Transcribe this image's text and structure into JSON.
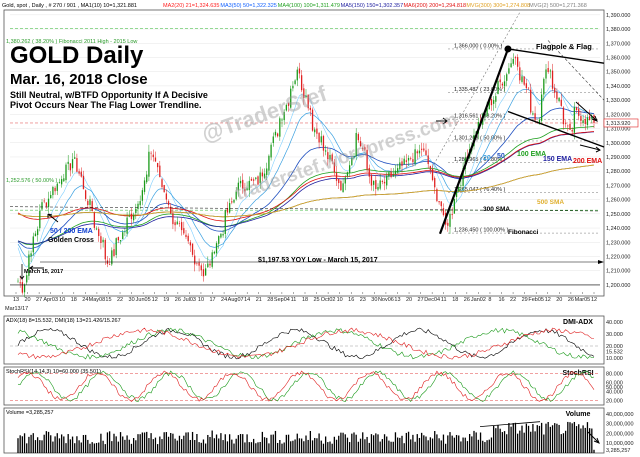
{
  "header": {
    "symbol_line": "Gold, spot , Daily , # 270 / 901 , MA1(10) 10=1,321.881",
    "ma_parts": [
      {
        "text": "MA2(20) 21=1,324.635",
        "color": "#ff2020"
      },
      {
        "text": "MA3(50) 50=1,322.325",
        "color": "#1060ff"
      },
      {
        "text": "MA4(100) 100=1,311.479",
        "color": "#20a020"
      },
      {
        "text": "MA5(150) 150=1,302.357",
        "color": "#2020a0"
      },
      {
        "text": "MA6(200) 200=1,294.818",
        "color": "#e01010"
      },
      {
        "text": "MVG(300) 300=1,274.808",
        "color": "#e0a020"
      },
      {
        "text": "MVG(2) 500=1,271.368",
        "color": "#808080"
      }
    ]
  },
  "title": {
    "main": "GOLD Daily",
    "date": "Mar. 16, 2018 Close",
    "line1": "Still Neutral, w/BTFD Opportunity If A Decisive",
    "line2": "Pivot Occurs Near The Flag Lower Trendline."
  },
  "watermark": {
    "line1": "@TraderStef",
    "line2": "traderstef.wordpress.com"
  },
  "annotations": {
    "fib_top_left": "1,380.262 ( 38.20% ) Fibonacci 2011 High - 2015 Low",
    "fib_left_mid": "1,252.576 ( 50.00% )",
    "flagpole": "Flagpole & Flag",
    "golden_cross_1": "50 / 200 EMA",
    "golden_cross_2": "Golden Cross",
    "march_label": "March 15, 2017",
    "yoy_low": "$1,197.53 YOY Low - March 15, 2017",
    "fibonacci": "Fibonacci",
    "ema20": "20",
    "ema50": "50",
    "ema100": "100 EMA",
    "ema150": "150 EMA",
    "ema200": "200 EMA",
    "sma300": "300 SMA",
    "sma500": "500 SMA",
    "fib_levels": [
      {
        "label": "1,366.000 ( 0.00% )"
      },
      {
        "label": "1,335.487 ( 23.60% )"
      },
      {
        "label": "1,316.561 ( 38.20% )"
      },
      {
        "label": "1,301.263 ( 50.00% )"
      },
      {
        "label": "1,285.965 ( 61.80% )"
      },
      {
        "label": "1,265.047 ( 76.40% )"
      },
      {
        "label": "1,236.450 ( 100.00% )"
      }
    ],
    "price_tag": "1,313.920"
  },
  "x_ticks": [
    "13",
    "20",
    "27",
    "Apr03",
    "10",
    "18",
    "24",
    "May08",
    "15",
    "22",
    "30",
    "Jun05",
    "12",
    "19",
    "26",
    "Jul03",
    "10",
    "17",
    "24",
    "Aug07",
    "14",
    "21",
    "28",
    "Sep04",
    "11",
    "18",
    "25",
    "Oct02",
    "10",
    "16",
    "23",
    "30",
    "Nov06",
    "13",
    "20",
    "27",
    "Dec04",
    "11",
    "18",
    "26",
    "Jan02",
    "8",
    "16",
    "22",
    "29",
    "Feb05",
    "12",
    "20",
    "26",
    "Mar05",
    "12"
  ],
  "x_start_label": "Mar13/17",
  "y_ticks_main": [
    "1,390.000",
    "1,380.000",
    "1,370.000",
    "1,360.000",
    "1,350.000",
    "1,340.000",
    "1,330.000",
    "1,320.000",
    "1,310.000",
    "1,300.000",
    "1,290.000",
    "1,280.000",
    "1,270.000",
    "1,260.000",
    "1,250.000",
    "1,240.000",
    "1,230.000",
    "1,220.000",
    "1,210.000",
    "1,200.000"
  ],
  "panes": {
    "adx": {
      "title": "DMI-ADX",
      "header": "ADX(18) 8=15.532, DMI(18) 13=21.426/15.267",
      "y_ticks": [
        "40.000",
        "30.000",
        "20.000",
        "15.532",
        "10.000"
      ],
      "hline": 20
    },
    "stoch": {
      "title": "StochRSI",
      "header": "StochRSI(14,14,3) 10=60.000 (35.501)",
      "y_ticks": [
        "80.000",
        "60.000",
        "50.000",
        "40.000",
        "20.000"
      ],
      "hlines": [
        80,
        20
      ]
    },
    "volume": {
      "title": "Volume",
      "header": "Volume =3,285,257",
      "y_ticks": [
        "40,000,000",
        "30,000,000",
        "20,000,000",
        "10,000,000",
        "3,285,257"
      ]
    }
  },
  "chart_data": {
    "type": "candlestick",
    "title": "GOLD Daily",
    "subtitle": "Mar. 16, 2018 Close",
    "x_range": [
      "Mar13/17",
      "Mar 16, 2018"
    ],
    "ylim": [
      1195,
      1392
    ],
    "close_anchors": [
      {
        "date": "2017-03-13",
        "close": 1203
      },
      {
        "date": "2017-03-15",
        "close": 1198
      },
      {
        "date": "2017-03-27",
        "close": 1254
      },
      {
        "date": "2017-04-17",
        "close": 1289
      },
      {
        "date": "2017-05-09",
        "close": 1216
      },
      {
        "date": "2017-05-30",
        "close": 1263
      },
      {
        "date": "2017-06-06",
        "close": 1294
      },
      {
        "date": "2017-06-19",
        "close": 1248
      },
      {
        "date": "2017-07-10",
        "close": 1207
      },
      {
        "date": "2017-07-31",
        "close": 1269
      },
      {
        "date": "2017-08-14",
        "close": 1273
      },
      {
        "date": "2017-09-08",
        "close": 1352
      },
      {
        "date": "2017-09-18",
        "close": 1312
      },
      {
        "date": "2017-10-06",
        "close": 1268
      },
      {
        "date": "2017-10-16",
        "close": 1306
      },
      {
        "date": "2017-10-27",
        "close": 1266
      },
      {
        "date": "2017-11-27",
        "close": 1296
      },
      {
        "date": "2017-12-12",
        "close": 1241
      },
      {
        "date": "2017-12-29",
        "close": 1304
      },
      {
        "date": "2018-01-25",
        "close": 1361
      },
      {
        "date": "2018-02-08",
        "close": 1315
      },
      {
        "date": "2018-02-15",
        "close": 1354
      },
      {
        "date": "2018-03-01",
        "close": 1305
      },
      {
        "date": "2018-03-05",
        "close": 1321
      },
      {
        "date": "2018-03-16",
        "close": 1313.92
      }
    ],
    "last_close": 1313.92,
    "yoy_low": 1197.53,
    "moving_averages": [
      {
        "name": "MA1(10)",
        "value": 1321.881
      },
      {
        "name": "MA2(20)",
        "value": 1324.635
      },
      {
        "name": "MA3(50)",
        "value": 1322.325
      },
      {
        "name": "MA4(100)",
        "value": 1311.479
      },
      {
        "name": "MA5(150)",
        "value": 1302.357
      },
      {
        "name": "MA6(200)",
        "value": 1294.818
      },
      {
        "name": "MVG(300)",
        "value": 1274.808
      },
      {
        "name": "MVG(500)",
        "value": 1271.368
      }
    ],
    "fibonacci": [
      {
        "pct": 0,
        "price": 1366.0
      },
      {
        "pct": 23.6,
        "price": 1335.487
      },
      {
        "pct": 38.2,
        "price": 1316.561
      },
      {
        "pct": 50.0,
        "price": 1301.263
      },
      {
        "pct": 61.8,
        "price": 1285.965
      },
      {
        "pct": 76.4,
        "price": 1265.047
      },
      {
        "pct": 100.0,
        "price": 1236.45
      }
    ],
    "fib_2011_2015": [
      {
        "pct": 38.2,
        "price": 1380.262
      },
      {
        "pct": 50.0,
        "price": 1252.576
      }
    ],
    "indicators": {
      "adx": {
        "adx": 15.532,
        "dmi_plus": 21.426,
        "dmi_minus": 15.267
      },
      "stoch_rsi": {
        "k": 60.0,
        "d": 35.501
      },
      "volume_last": 3285257
    }
  }
}
